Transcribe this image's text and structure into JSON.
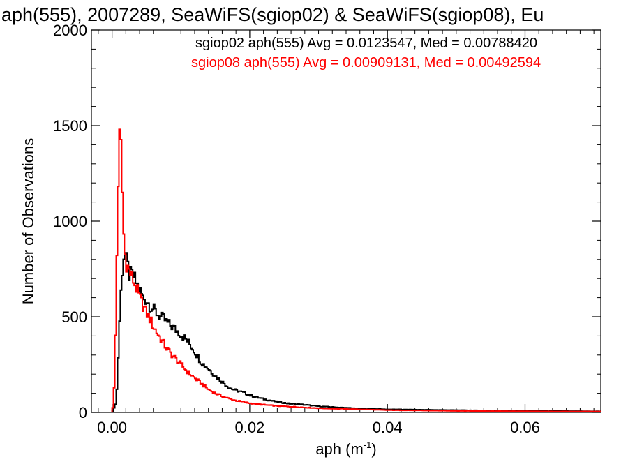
{
  "chart_data": {
    "type": "histogram",
    "title": "aph(555), 2007289, SeaWiFS(sgiop02) & SeaWiFS(sgiop08), Eu",
    "xlabel": "aph (m",
    "xlabel_sup": "-1",
    "xlabel_close": ")",
    "ylabel": "Number of Observations",
    "xlim": [
      -0.003,
      0.071
    ],
    "ylim": [
      0,
      2000
    ],
    "xticks": [
      0.0,
      0.02,
      0.04,
      0.06
    ],
    "xtick_labels": [
      "0.00",
      "0.02",
      "0.04",
      "0.06"
    ],
    "yticks": [
      0,
      500,
      1000,
      1500,
      2000
    ],
    "ytick_labels": [
      "0",
      "500",
      "1000",
      "1500",
      "2000"
    ],
    "legend_placement": "top-right",
    "annotations": [
      "sgiop02 aph(555) Avg = 0.0123547, Med = 0.00788420",
      "sgiop08 aph(555) Avg = 0.00909131, Med = 0.00492594"
    ],
    "series": [
      {
        "name": "sgiop02",
        "color": "#000000",
        "points": [
          [
            0.0,
            0
          ],
          [
            0.0004,
            30
          ],
          [
            0.0006,
            60
          ],
          [
            0.0008,
            180
          ],
          [
            0.001,
            400
          ],
          [
            0.0012,
            560
          ],
          [
            0.0014,
            700
          ],
          [
            0.0016,
            790
          ],
          [
            0.0018,
            845
          ],
          [
            0.002,
            800
          ],
          [
            0.0022,
            780
          ],
          [
            0.0025,
            720
          ],
          [
            0.003,
            720
          ],
          [
            0.0035,
            680
          ],
          [
            0.004,
            640
          ],
          [
            0.0045,
            600
          ],
          [
            0.005,
            590
          ],
          [
            0.0055,
            560
          ],
          [
            0.006,
            540
          ],
          [
            0.0065,
            520
          ],
          [
            0.007,
            500
          ],
          [
            0.0075,
            490
          ],
          [
            0.008,
            470
          ],
          [
            0.009,
            440
          ],
          [
            0.01,
            410
          ],
          [
            0.011,
            370
          ],
          [
            0.012,
            320
          ],
          [
            0.013,
            260
          ],
          [
            0.014,
            230
          ],
          [
            0.015,
            190
          ],
          [
            0.016,
            160
          ],
          [
            0.017,
            130
          ],
          [
            0.018,
            115
          ],
          [
            0.019,
            105
          ],
          [
            0.02,
            90
          ],
          [
            0.022,
            70
          ],
          [
            0.024,
            55
          ],
          [
            0.026,
            45
          ],
          [
            0.028,
            40
          ],
          [
            0.03,
            32
          ],
          [
            0.032,
            28
          ],
          [
            0.034,
            24
          ],
          [
            0.036,
            20
          ],
          [
            0.038,
            18
          ],
          [
            0.04,
            16
          ],
          [
            0.045,
            14
          ],
          [
            0.05,
            12
          ],
          [
            0.055,
            10
          ],
          [
            0.06,
            8
          ],
          [
            0.065,
            7
          ],
          [
            0.07,
            6
          ]
        ]
      },
      {
        "name": "sgiop08",
        "color": "#ff0000",
        "points": [
          [
            0.0,
            0
          ],
          [
            0.0002,
            50
          ],
          [
            0.0004,
            200
          ],
          [
            0.0006,
            600
          ],
          [
            0.0008,
            1050
          ],
          [
            0.001,
            1380
          ],
          [
            0.0012,
            1470
          ],
          [
            0.0014,
            1300
          ],
          [
            0.0016,
            1000
          ],
          [
            0.0018,
            860
          ],
          [
            0.002,
            790
          ],
          [
            0.0025,
            740
          ],
          [
            0.003,
            700
          ],
          [
            0.0035,
            650
          ],
          [
            0.004,
            600
          ],
          [
            0.0045,
            560
          ],
          [
            0.005,
            520
          ],
          [
            0.0055,
            490
          ],
          [
            0.006,
            450
          ],
          [
            0.0065,
            420
          ],
          [
            0.007,
            390
          ],
          [
            0.0075,
            360
          ],
          [
            0.008,
            330
          ],
          [
            0.009,
            290
          ],
          [
            0.01,
            250
          ],
          [
            0.011,
            210
          ],
          [
            0.012,
            180
          ],
          [
            0.013,
            150
          ],
          [
            0.014,
            120
          ],
          [
            0.015,
            100
          ],
          [
            0.016,
            85
          ],
          [
            0.017,
            72
          ],
          [
            0.018,
            62
          ],
          [
            0.019,
            55
          ],
          [
            0.02,
            48
          ],
          [
            0.022,
            40
          ],
          [
            0.024,
            34
          ],
          [
            0.026,
            30
          ],
          [
            0.028,
            26
          ],
          [
            0.03,
            22
          ],
          [
            0.032,
            20
          ],
          [
            0.034,
            18
          ],
          [
            0.036,
            16
          ],
          [
            0.038,
            14
          ],
          [
            0.04,
            12
          ],
          [
            0.045,
            10
          ],
          [
            0.05,
            8
          ],
          [
            0.055,
            7
          ],
          [
            0.06,
            6
          ],
          [
            0.065,
            5
          ],
          [
            0.07,
            5
          ]
        ]
      }
    ]
  }
}
